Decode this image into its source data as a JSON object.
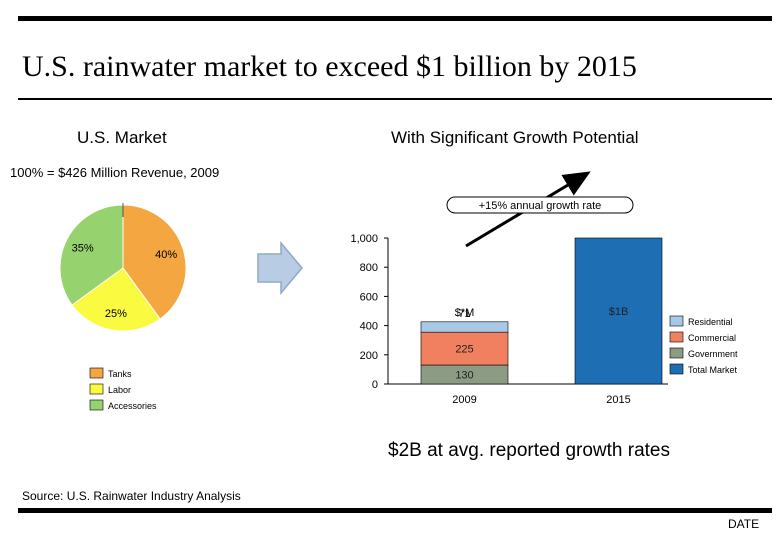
{
  "title": "U.S. rainwater market to exceed $1 billion by 2015",
  "pie_heading": "U.S. Market",
  "bar_heading": "With Significant Growth Potential",
  "pie_subtitle": "100% = $426 Million Revenue, 2009",
  "growth_callout": "+15% annual growth rate",
  "bottom_note": "$2B at avg. reported growth rates",
  "source": "Source: U.S. Rainwater Industry Analysis",
  "footer_date": "DATE",
  "colors": {
    "tanks": "#F4A640",
    "labor": "#FAFA40",
    "accessories": "#96D26E",
    "residential": "#A8C8E8",
    "commercial": "#F08060",
    "government": "#8C9C84",
    "total_market": "#1E6EB4"
  },
  "chart_data": [
    {
      "type": "pie",
      "title": "U.S. Market",
      "subtitle": "100% = $426 Million Revenue, 2009",
      "slices": [
        {
          "label": "Tanks",
          "value": 40,
          "display": "40%",
          "color": "#F4A640"
        },
        {
          "label": "Labor",
          "value": 25,
          "display": "25%",
          "color": "#FAFA40"
        },
        {
          "label": "Accessories",
          "value": 35,
          "display": "35%",
          "color": "#96D26E"
        }
      ],
      "legend": [
        "Tanks",
        "Labor",
        "Accessories"
      ]
    },
    {
      "type": "bar",
      "stacked": true,
      "title": "With Significant Growth Potential",
      "categories": [
        "2009",
        "2015"
      ],
      "unit_label": "$*M",
      "series": [
        {
          "name": "Government",
          "values": [
            130,
            null
          ],
          "labels": [
            "130",
            ""
          ],
          "color": "#8C9C84"
        },
        {
          "name": "Commercial",
          "values": [
            225,
            null
          ],
          "labels": [
            "225",
            ""
          ],
          "color": "#F08060"
        },
        {
          "name": "Residential",
          "values": [
            71,
            null
          ],
          "labels": [
            "71",
            ""
          ],
          "color": "#A8C8E8"
        },
        {
          "name": "Total Market",
          "values": [
            null,
            1000
          ],
          "labels": [
            "",
            "$1B"
          ],
          "color": "#1E6EB4"
        }
      ],
      "legend": [
        "Residential",
        "Commercial",
        "Government",
        "Total Market"
      ],
      "ylim": [
        0,
        1000
      ],
      "yticks": [
        0,
        200,
        400,
        600,
        800,
        1000
      ],
      "ytick_labels": [
        "0",
        "200",
        "400",
        "600",
        "800",
        "1,000"
      ]
    }
  ]
}
